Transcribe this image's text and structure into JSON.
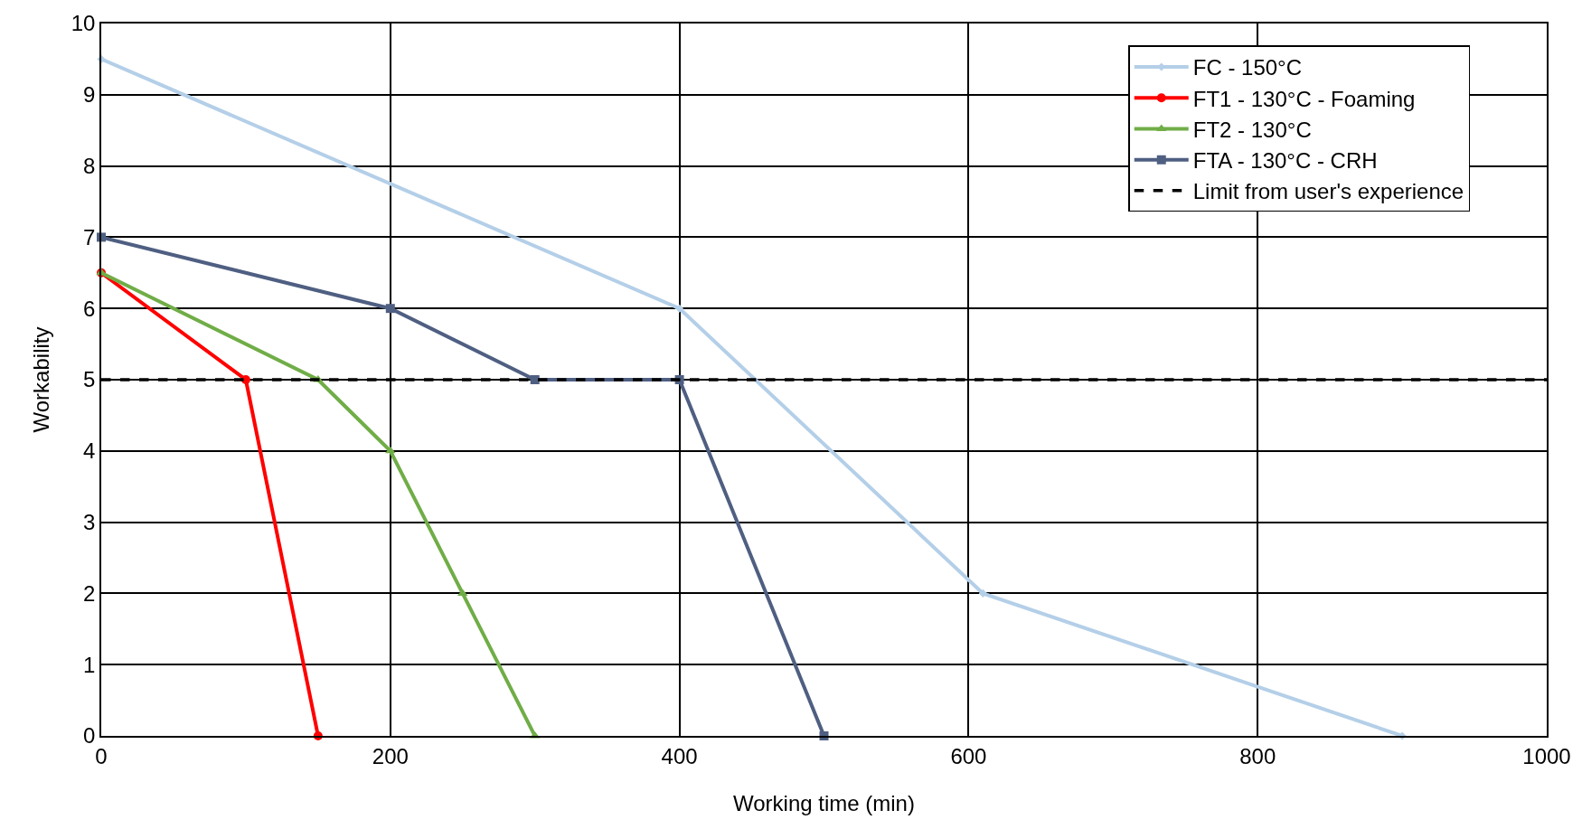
{
  "chart_data": {
    "type": "line",
    "xlabel": "Working time (min)",
    "ylabel": "Workability",
    "xlim": [
      0,
      1000
    ],
    "xticks": [
      0,
      200,
      400,
      600,
      800,
      1000
    ],
    "ylim": [
      0,
      10
    ],
    "yticks": [
      0,
      1,
      2,
      3,
      4,
      5,
      6,
      7,
      8,
      9,
      10
    ],
    "grid": true,
    "legend": "top right",
    "line_style": "solid",
    "series": [
      {
        "name": "FC - 150°C",
        "color": "#b4cfe8",
        "marker": "diamond",
        "x": [
          0,
          400,
          610,
          900
        ],
        "values": [
          9.5,
          6,
          2,
          0
        ]
      },
      {
        "name": "FT1 - 130°C - Foaming",
        "color": "#ff0000",
        "marker": "circle",
        "x": [
          0,
          100,
          150
        ],
        "values": [
          6.5,
          5,
          0
        ]
      },
      {
        "name": "FT2 - 130°C",
        "color": "#70ad47",
        "marker": "triangle",
        "x": [
          0,
          150,
          200,
          250,
          300
        ],
        "values": [
          6.5,
          5,
          4,
          2,
          0
        ]
      },
      {
        "name": "FTA - 130°C - CRH",
        "color": "#4f5f82",
        "marker": "square",
        "x": [
          0,
          200,
          300,
          400,
          500
        ],
        "values": [
          7,
          6,
          5,
          5,
          0
        ]
      }
    ],
    "ref_lines": [
      {
        "axis": "y",
        "value": 5,
        "label": "Limit from user's experience",
        "color": "#000000",
        "line_style": "dashed"
      }
    ]
  }
}
